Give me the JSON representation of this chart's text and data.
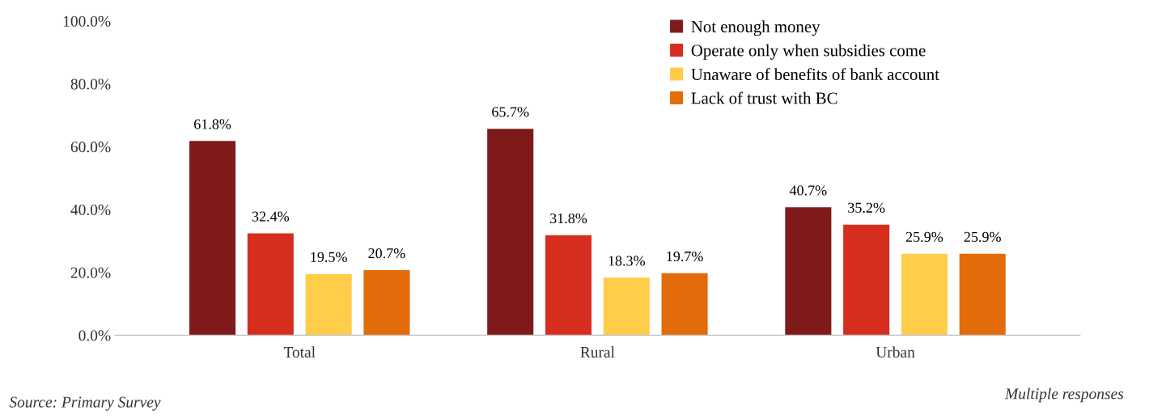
{
  "chart_data": {
    "type": "bar",
    "categories": [
      "Total",
      "Rural",
      "Urban"
    ],
    "series": [
      {
        "name": "Not enough money",
        "color": "#7f1a1a",
        "values": [
          61.8,
          65.7,
          40.7
        ],
        "value_labels": [
          "61.8%",
          "65.7%",
          "40.7%"
        ]
      },
      {
        "name": "Operate only when subsidies come",
        "color": "#d62e1e",
        "values": [
          32.4,
          31.8,
          35.2
        ],
        "value_labels": [
          "32.4%",
          "31.8%",
          "35.2%"
        ]
      },
      {
        "name": "Unaware of benefits of bank account",
        "color": "#ffcd4a",
        "values": [
          19.5,
          18.3,
          25.9
        ],
        "value_labels": [
          "19.5%",
          "18.3%",
          "25.9%"
        ]
      },
      {
        "name": "Lack of trust with BC",
        "color": "#e36b0a",
        "values": [
          20.7,
          19.7,
          25.9
        ],
        "value_labels": [
          "20.7%",
          "19.7%",
          "25.9%"
        ]
      }
    ],
    "ylim": [
      0,
      100
    ],
    "yticks": [
      {
        "value": 0,
        "label": "0.0%"
      },
      {
        "value": 20,
        "label": "20.0%"
      },
      {
        "value": 40,
        "label": "40.0%"
      },
      {
        "value": 60,
        "label": "60.0%"
      },
      {
        "value": 80,
        "label": "80.0%"
      },
      {
        "value": 100,
        "label": "100.0%"
      }
    ],
    "grid": false,
    "legend": "top right",
    "annotations": [
      "Source: Primary Survey",
      "Multiple responses"
    ]
  }
}
